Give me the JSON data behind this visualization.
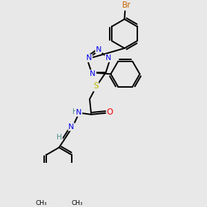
{
  "bg_color": "#e8e8e8",
  "atom_colors": {
    "N": "#0000ee",
    "O": "#ee0000",
    "S": "#bbbb00",
    "Br": "#cc6600",
    "C": "#000000",
    "H": "#448888"
  },
  "bond_color": "#000000",
  "bond_width": 1.5,
  "fig_width": 3.0,
  "fig_height": 3.0,
  "dpi": 100
}
